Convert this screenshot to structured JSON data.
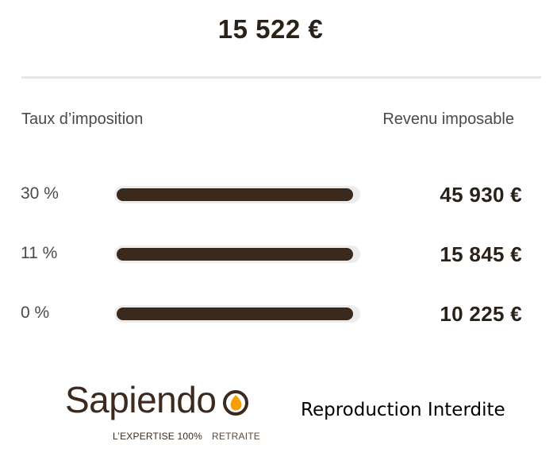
{
  "total": "15 522 €",
  "headers": {
    "rate": "Taux d’imposition",
    "income": "Revenu imposable"
  },
  "brackets": [
    {
      "rate": "30 %",
      "amount": "45 930 €",
      "fill": 0.98
    },
    {
      "rate": "11 %",
      "amount": "15 845 €",
      "fill": 0.98
    },
    {
      "rate": "0 %",
      "amount": "10 225 €",
      "fill": 0.98
    }
  ],
  "logo": {
    "word": "Sapiendo",
    "tagline_main": "L’EXPERTISE 100%",
    "tagline_sub": "RETRAITE"
  },
  "watermark": "Reproduction Interdite",
  "colors": {
    "bar_fill": "#3a2a1e",
    "bar_track": "#ececec",
    "brand_brown": "#3d2a1f",
    "brand_orange": "#f5a000"
  }
}
